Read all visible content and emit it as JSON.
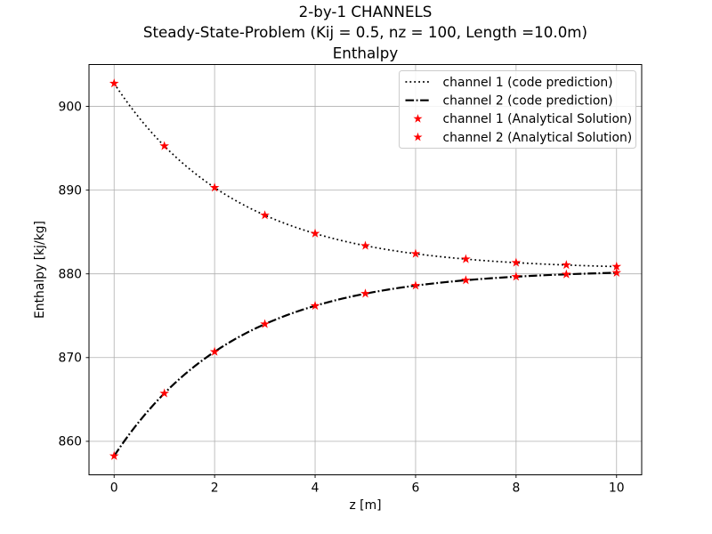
{
  "chart_data": {
    "type": "line",
    "title_lines": [
      "2-by-1 CHANNELS",
      "Steady-State-Problem (Kij = 0.5, nz = 100, Length =10.0m)",
      "Enthalpy"
    ],
    "xlabel": "z [m]",
    "ylabel": "Enthalpy [kj/kg]",
    "xlim": [
      -0.5,
      10.5
    ],
    "ylim": [
      856.0,
      905.0
    ],
    "xticks": [
      0,
      2,
      4,
      6,
      8,
      10
    ],
    "yticks": [
      860,
      870,
      880,
      890,
      900
    ],
    "grid": true,
    "colors": {
      "grid": "#b0b0b0",
      "axes_edge": "#000000",
      "curve": "#000000",
      "marker": "#ff0000",
      "legend_border": "#cccccc",
      "legend_background": "rgba(255,255,255,0.85)"
    },
    "legend": {
      "position": "upper right",
      "entries": [
        {
          "label": "channel 1 (code prediction)",
          "sample": "dotted-line",
          "color": "#000000"
        },
        {
          "label": "channel 2 (code prediction)",
          "sample": "dashdot-line",
          "color": "#000000"
        },
        {
          "label": "channel 1 (Analytical Solution)",
          "sample": "star-marker",
          "color": "#ff0000"
        },
        {
          "label": "channel 2 (Analytical Solution)",
          "sample": "star-marker",
          "color": "#ff0000"
        }
      ]
    },
    "series": [
      {
        "name": "channel 1 (code prediction)",
        "kind": "curve",
        "linestyle": "dotted",
        "color": "#000000",
        "model": {
          "mean": 880.5,
          "amplitude": 22.25,
          "decay": 0.41,
          "sign": 1,
          "z_start": 0,
          "z_end": 10,
          "n_points": 100
        }
      },
      {
        "name": "channel 2 (code prediction)",
        "kind": "curve",
        "linestyle": "dashdot",
        "color": "#000000",
        "model": {
          "mean": 880.5,
          "amplitude": 22.25,
          "decay": 0.41,
          "sign": -1,
          "z_start": 0,
          "z_end": 10,
          "n_points": 100
        }
      },
      {
        "name": "channel 1 (Analytical Solution)",
        "kind": "markers",
        "marker": "star",
        "color": "#ff0000",
        "x": [
          0,
          1,
          2,
          3,
          4,
          5,
          6,
          7,
          8,
          9,
          10
        ],
        "y": [
          902.75,
          895.27,
          890.3,
          887.0,
          884.82,
          883.36,
          882.4,
          881.76,
          881.34,
          881.06,
          880.87
        ]
      },
      {
        "name": "channel 2 (Analytical Solution)",
        "kind": "markers",
        "marker": "star",
        "color": "#ff0000",
        "x": [
          0,
          1,
          2,
          3,
          4,
          5,
          6,
          7,
          8,
          9,
          10
        ],
        "y": [
          858.25,
          865.73,
          870.7,
          874.0,
          876.18,
          877.64,
          878.6,
          879.24,
          879.66,
          879.94,
          880.13
        ]
      }
    ]
  }
}
